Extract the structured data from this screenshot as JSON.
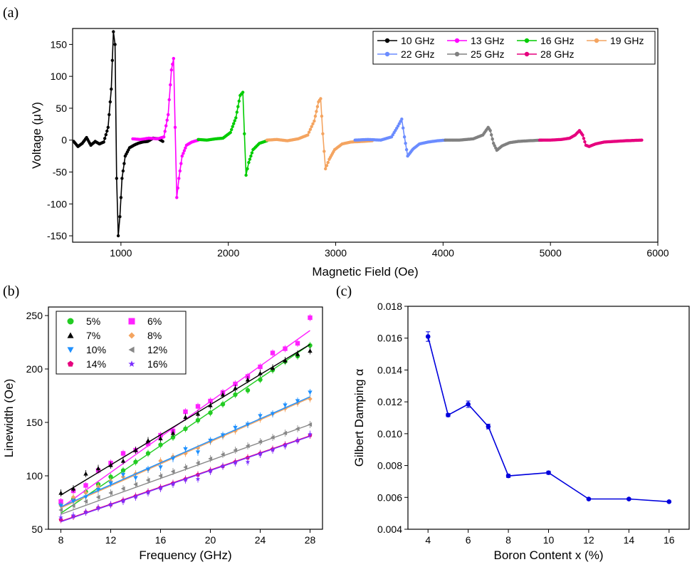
{
  "panels": {
    "a": "(a)",
    "b": "(b)",
    "c": "(c)"
  },
  "chart_data": [
    {
      "type": "line",
      "panel": "(a)",
      "xlabel": "Magnetic Field (Oe)",
      "ylabel": "Voltage (μV)",
      "xlim": [
        550,
        6000
      ],
      "ylim": [
        -160,
        175
      ],
      "xticks": [
        1000,
        2000,
        3000,
        4000,
        5000,
        6000
      ],
      "yticks": [
        -150,
        -100,
        -50,
        0,
        50,
        100,
        150
      ],
      "legend_position": "top-right",
      "series": [
        {
          "name": "10 GHz",
          "color": "#000000",
          "x": [
            560,
            600,
            640,
            680,
            720,
            760,
            800,
            840,
            880,
            910,
            930,
            945,
            960,
            975,
            990,
            1010,
            1040,
            1080,
            1120,
            1160,
            1200,
            1250,
            1300,
            1350,
            1390
          ],
          "y": [
            -2,
            -10,
            -5,
            4,
            -8,
            -2,
            -6,
            -3,
            20,
            80,
            170,
            150,
            -60,
            -150,
            -120,
            -60,
            -25,
            -12,
            -8,
            -5,
            -3,
            -2,
            3,
            2,
            -2
          ]
        },
        {
          "name": "13 GHz",
          "color": "#ff00ff",
          "x": [
            1110,
            1180,
            1260,
            1340,
            1400,
            1440,
            1470,
            1490,
            1505,
            1520,
            1540,
            1570,
            1610,
            1660,
            1720
          ],
          "y": [
            2,
            1,
            3,
            2,
            5,
            40,
            110,
            128,
            20,
            -90,
            -60,
            -25,
            -8,
            -3,
            0
          ]
        },
        {
          "name": "16 GHz",
          "color": "#00cc00",
          "x": [
            1720,
            1800,
            1880,
            1950,
            2020,
            2070,
            2110,
            2135,
            2150,
            2165,
            2190,
            2230,
            2290,
            2360
          ],
          "y": [
            1,
            0,
            2,
            3,
            12,
            35,
            70,
            75,
            10,
            -55,
            -35,
            -15,
            -5,
            -1
          ]
        },
        {
          "name": "19 GHz",
          "color": "#f4a460",
          "x": [
            2360,
            2450,
            2550,
            2650,
            2740,
            2800,
            2840,
            2860,
            2880,
            2905,
            2940,
            2990,
            3060,
            3140,
            3250,
            3340
          ],
          "y": [
            0,
            1,
            -1,
            2,
            8,
            30,
            60,
            65,
            10,
            -45,
            -30,
            -15,
            -6,
            -3,
            -2,
            -1
          ]
        },
        {
          "name": "22 GHz",
          "color": "#6b8cff",
          "x": [
            3180,
            3300,
            3420,
            3520,
            3580,
            3615,
            3640,
            3670,
            3720,
            3780,
            3860,
            3950,
            4020
          ],
          "y": [
            0,
            1,
            0,
            5,
            22,
            33,
            5,
            -25,
            -14,
            -6,
            -3,
            -1,
            0
          ]
        },
        {
          "name": "25 GHz",
          "color": "#808080",
          "x": [
            4020,
            4150,
            4280,
            4370,
            4420,
            4440,
            4470,
            4500,
            4550,
            4620,
            4700,
            4800,
            4920
          ],
          "y": [
            0,
            0,
            2,
            8,
            20,
            15,
            -5,
            -16,
            -9,
            -4,
            -2,
            -1,
            0
          ]
        },
        {
          "name": "28 GHz",
          "color": "#e6007e",
          "x": [
            4900,
            5000,
            5100,
            5180,
            5230,
            5270,
            5300,
            5330,
            5360,
            5420,
            5500,
            5600,
            5700,
            5850
          ],
          "y": [
            0,
            0,
            1,
            3,
            8,
            15,
            8,
            -8,
            -10,
            -6,
            -3,
            -2,
            -1,
            0
          ]
        }
      ]
    },
    {
      "type": "scatter",
      "panel": "(b)",
      "xlabel": "Frequency (GHz)",
      "ylabel": "Linewidth (Oe)",
      "xlim": [
        7,
        29
      ],
      "ylim": [
        50,
        258
      ],
      "xticks": [
        8,
        12,
        16,
        20,
        24,
        28
      ],
      "yticks": [
        50,
        100,
        150,
        200,
        250
      ],
      "legend_position": "top-left",
      "x": [
        8,
        9,
        10,
        11,
        12,
        13,
        14,
        15,
        16,
        17,
        18,
        19,
        20,
        21,
        22,
        23,
        24,
        25,
        26,
        27,
        28
      ],
      "series": [
        {
          "name": "5%",
          "color": "#22cc22",
          "marker": "circle",
          "fit": [
            65.0,
            7.9
          ],
          "values": [
            74,
            78,
            85,
            92,
            99,
            105,
            113,
            121,
            129,
            136,
            144,
            152,
            159,
            167,
            176,
            180,
            190,
            199,
            207,
            212,
            222
          ]
        },
        {
          "name": "6%",
          "color": "#ff22ff",
          "marker": "square",
          "fit": [
            70.0,
            8.3
          ],
          "values": [
            76,
            86,
            91,
            105,
            112,
            121,
            124,
            130,
            138,
            142,
            160,
            165,
            170,
            178,
            186,
            193,
            202,
            215,
            219,
            224,
            248
          ]
        },
        {
          "name": "7%",
          "color": "#000000",
          "marker": "triangle-up",
          "fit": [
            82.0,
            7.05
          ],
          "values": [
            84,
            88,
            102,
            107,
            110,
            114,
            124,
            133,
            135,
            140,
            155,
            158,
            166,
            176,
            182,
            190,
            196,
            201,
            208,
            214,
            217
          ]
        },
        {
          "name": "8%",
          "color": "#f4a460",
          "marker": "diamond",
          "fit": [
            70.0,
            5.15
          ],
          "values": [
            72,
            80,
            84,
            90,
            95,
            99,
            102,
            106,
            114,
            118,
            121,
            126,
            132,
            137,
            142,
            148,
            153,
            158,
            163,
            168,
            172
          ]
        },
        {
          "name": "10%",
          "color": "#1e90ff",
          "marker": "triangle-down",
          "fit": [
            71.0,
            5.15
          ],
          "values": [
            72,
            76,
            80,
            87,
            93,
            101,
            98,
            106,
            108,
            116,
            125,
            122,
            133,
            138,
            145,
            148,
            156,
            158,
            166,
            170,
            178
          ]
        },
        {
          "name": "12%",
          "color": "#888888",
          "marker": "triangle-left",
          "fit": [
            64.0,
            4.2
          ],
          "values": [
            68,
            72,
            76,
            80,
            84,
            88,
            92,
            96,
            100,
            104,
            108,
            112,
            116,
            120,
            124,
            128,
            132,
            136,
            140,
            144,
            148
          ]
        },
        {
          "name": "14%",
          "color": "#e6007e",
          "marker": "pentagon",
          "fit": [
            57.5,
            4.0
          ],
          "values": [
            59,
            62,
            66,
            70,
            73,
            77,
            81,
            85,
            89,
            93,
            97,
            101,
            105,
            109,
            113,
            117,
            121,
            125,
            129,
            133,
            138
          ]
        },
        {
          "name": "16%",
          "color": "#7b2fff",
          "marker": "star",
          "fit": [
            57.0,
            4.0
          ],
          "values": [
            61,
            63,
            66,
            70,
            73,
            76,
            80,
            84,
            88,
            92,
            96,
            97,
            104,
            109,
            112,
            113,
            120,
            124,
            128,
            133,
            139
          ]
        }
      ]
    },
    {
      "type": "line",
      "panel": "(c)",
      "xlabel": "Boron Content x (%)",
      "ylabel": "Gilbert Damping α",
      "xlim": [
        3,
        17
      ],
      "ylim": [
        0.004,
        0.018
      ],
      "xticks": [
        4,
        6,
        8,
        10,
        12,
        14,
        16
      ],
      "yticks": [
        "0.004",
        "0.006",
        "0.008",
        "0.010",
        "0.012",
        "0.014",
        "0.016",
        "0.018"
      ],
      "color": "#0000dd",
      "x": [
        4,
        5,
        6,
        7,
        8,
        10,
        12,
        14,
        16
      ],
      "values": [
        0.0161,
        0.01117,
        0.01185,
        0.01045,
        0.00735,
        0.00755,
        0.0059,
        0.0059,
        0.00573
      ],
      "errors": [
        0.0003,
        0.0001,
        0.0002,
        0.00015,
        0.0001,
        0.0001,
        5e-05,
        5e-05,
        5e-05
      ]
    }
  ]
}
